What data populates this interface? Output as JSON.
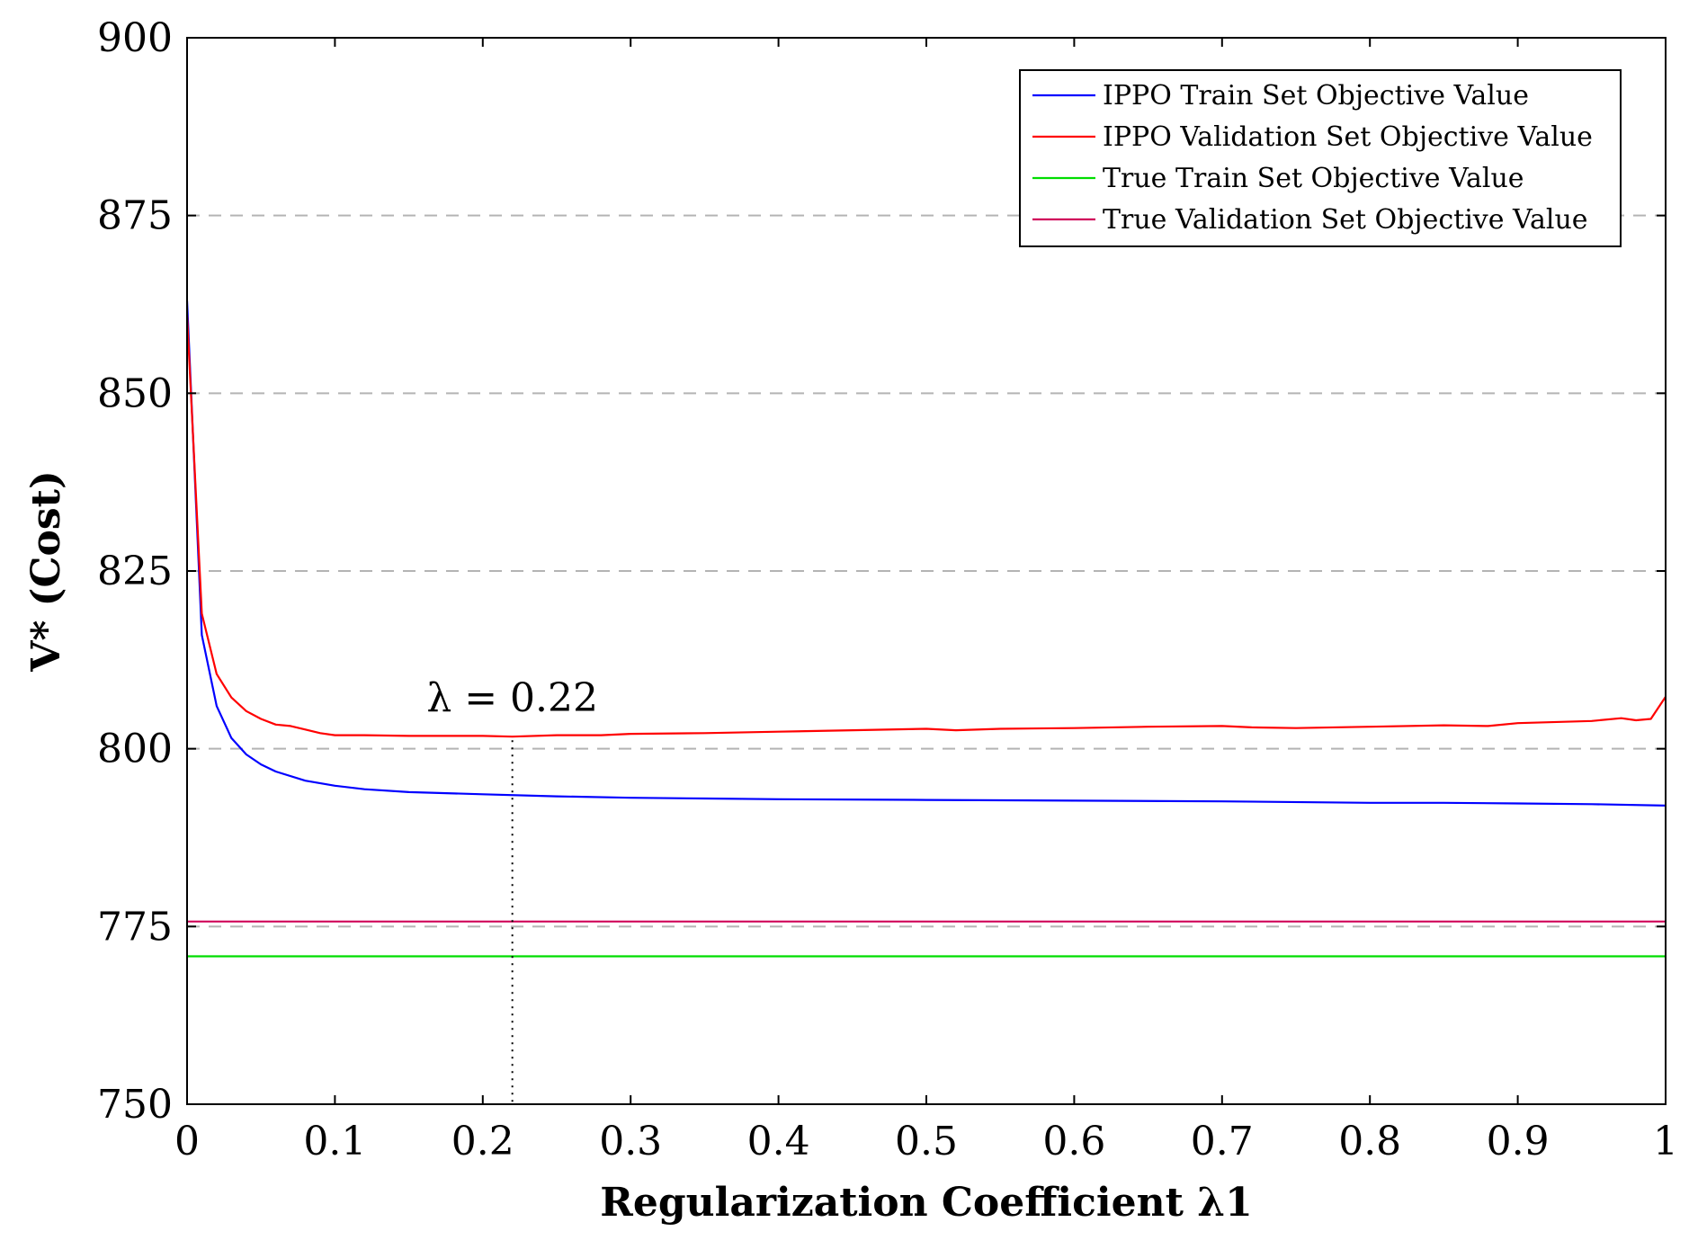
{
  "chart_data": {
    "type": "line",
    "xlabel": "Regularization Coefficient λ1",
    "ylabel": "V* (Cost)",
    "xlim": [
      0,
      1
    ],
    "ylim": [
      750,
      900
    ],
    "x_ticks": [
      "0",
      "0.1",
      "0.2",
      "0.3",
      "0.4",
      "0.5",
      "0.6",
      "0.7",
      "0.8",
      "0.9",
      "1"
    ],
    "y_ticks": [
      "750",
      "775",
      "800",
      "825",
      "850",
      "875",
      "900"
    ],
    "grid": "horizontal dashed",
    "legend_position": "top-right",
    "annotation": {
      "text": "λ = 0.22",
      "x": 0.22
    },
    "series": [
      {
        "name": "IPPO Train Set Objective Value",
        "color": "#0000ff",
        "points": [
          [
            0,
            863
          ],
          [
            0.01,
            816
          ],
          [
            0.02,
            806
          ],
          [
            0.03,
            801.5
          ],
          [
            0.04,
            799.2
          ],
          [
            0.05,
            797.8
          ],
          [
            0.06,
            796.8
          ],
          [
            0.08,
            795.5
          ],
          [
            0.1,
            794.8
          ],
          [
            0.12,
            794.3
          ],
          [
            0.15,
            793.9
          ],
          [
            0.2,
            793.6
          ],
          [
            0.25,
            793.3
          ],
          [
            0.3,
            793.1
          ],
          [
            0.35,
            793
          ],
          [
            0.4,
            792.9
          ],
          [
            0.5,
            792.8
          ],
          [
            0.6,
            792.7
          ],
          [
            0.7,
            792.6
          ],
          [
            0.8,
            792.4
          ],
          [
            0.85,
            792.4
          ],
          [
            0.9,
            792.3
          ],
          [
            0.95,
            792.2
          ],
          [
            1,
            792
          ]
        ]
      },
      {
        "name": "IPPO Validation Set Objective Value",
        "color": "#ff0000",
        "points": [
          [
            0,
            861
          ],
          [
            0.01,
            819
          ],
          [
            0.02,
            810.5
          ],
          [
            0.03,
            807.2
          ],
          [
            0.04,
            805.3
          ],
          [
            0.05,
            804.2
          ],
          [
            0.06,
            803.4
          ],
          [
            0.07,
            803.2
          ],
          [
            0.08,
            802.7
          ],
          [
            0.09,
            802.2
          ],
          [
            0.1,
            801.9
          ],
          [
            0.12,
            801.9
          ],
          [
            0.15,
            801.8
          ],
          [
            0.18,
            801.8
          ],
          [
            0.2,
            801.8
          ],
          [
            0.22,
            801.7
          ],
          [
            0.25,
            801.9
          ],
          [
            0.28,
            801.9
          ],
          [
            0.3,
            802.1
          ],
          [
            0.35,
            802.2
          ],
          [
            0.4,
            802.4
          ],
          [
            0.45,
            802.6
          ],
          [
            0.5,
            802.8
          ],
          [
            0.52,
            802.6
          ],
          [
            0.55,
            802.8
          ],
          [
            0.6,
            802.9
          ],
          [
            0.65,
            803.1
          ],
          [
            0.7,
            803.2
          ],
          [
            0.72,
            803
          ],
          [
            0.75,
            802.9
          ],
          [
            0.8,
            803.1
          ],
          [
            0.85,
            803.3
          ],
          [
            0.88,
            803.2
          ],
          [
            0.9,
            803.6
          ],
          [
            0.95,
            803.9
          ],
          [
            0.97,
            804.3
          ],
          [
            0.98,
            804
          ],
          [
            0.99,
            804.2
          ],
          [
            1,
            807.3
          ]
        ]
      },
      {
        "name": "True Train Set Objective Value",
        "color": "#00dd00",
        "points": [
          [
            0,
            770.8
          ],
          [
            1,
            770.8
          ]
        ]
      },
      {
        "name": "True Validation Set Objective Value",
        "color": "#d0005a",
        "points": [
          [
            0,
            775.7
          ],
          [
            1,
            775.7
          ]
        ]
      }
    ]
  }
}
